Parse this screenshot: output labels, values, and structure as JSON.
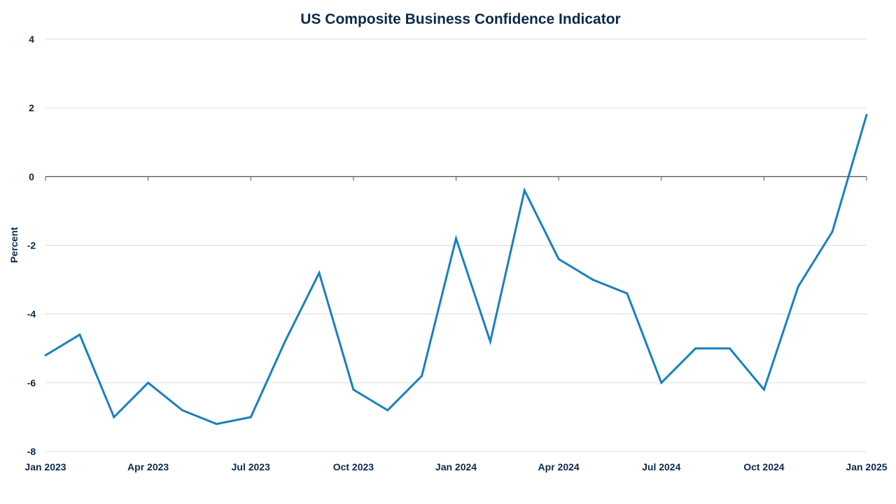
{
  "chart_data": {
    "type": "line",
    "title": "US Composite Business Confidence Indicator",
    "xlabel": "",
    "ylabel": "Percent",
    "ylim": [
      -8,
      4
    ],
    "yticks": [
      4,
      2,
      0,
      -2,
      -4,
      -6,
      -8
    ],
    "grid": true,
    "x_tick_labels": [
      "Jan 2023",
      "Apr 2023",
      "Jul 2023",
      "Oct 2023",
      "Jan 2024",
      "Apr 2024",
      "Jul 2024",
      "Oct 2024",
      "Jan 2025"
    ],
    "x": [
      "2023-01",
      "2023-02",
      "2023-03",
      "2023-04",
      "2023-05",
      "2023-06",
      "2023-07",
      "2023-08",
      "2023-09",
      "2023-10",
      "2023-11",
      "2023-12",
      "2024-01",
      "2024-02",
      "2024-03",
      "2024-04",
      "2024-05",
      "2024-06",
      "2024-07",
      "2024-08",
      "2024-09",
      "2024-10",
      "2024-11",
      "2024-12",
      "2025-01"
    ],
    "series": [
      {
        "color": "#1a7fc1",
        "values": [
          -5.2,
          -4.6,
          -7.0,
          -6.0,
          -6.8,
          -7.2,
          -7.0,
          -4.8,
          -2.8,
          -6.2,
          -6.8,
          -5.8,
          -1.8,
          -4.8,
          -0.4,
          -2.4,
          -3.0,
          -3.4,
          -6.0,
          -5.0,
          -5.0,
          -6.2,
          -3.2,
          -1.6,
          1.8
        ]
      }
    ]
  }
}
